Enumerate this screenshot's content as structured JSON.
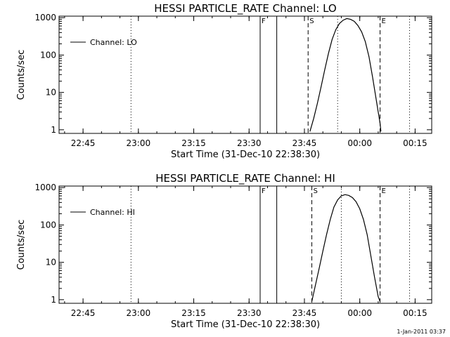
{
  "footer": {
    "stamp": "1-Jan-2011 03:37"
  },
  "chart_data": [
    {
      "type": "line",
      "title": "HESSI PARTICLE_RATE Channel: LO",
      "xlabel": "Start Time (31-Dec-10 22:38:30)",
      "ylabel": "Counts/sec",
      "x_unit": "hh:mm",
      "xlim": [
        "22:38:30",
        "00:19:30"
      ],
      "ylim": [
        0.8,
        1100
      ],
      "yscale": "log",
      "x_tick_labels": [
        "22:45",
        "23:00",
        "23:15",
        "23:30",
        "23:45",
        "00:00",
        "00:15"
      ],
      "y_tick_labels": [
        "1",
        "10",
        "100",
        "1000"
      ],
      "legend": {
        "position": "top-left",
        "entries": [
          "Channel: LO"
        ]
      },
      "series": [
        {
          "name": "Channel: LO",
          "x": [
            "23:46:30",
            "23:47:30",
            "23:48:30",
            "23:49:30",
            "23:50:30",
            "23:51:30",
            "23:52:30",
            "23:53:30",
            "23:54:30",
            "23:55:30",
            "23:56:30",
            "23:57:30",
            "23:58:30",
            "23:59:30",
            "00:00:30",
            "00:01:30",
            "00:02:30",
            "00:03:30",
            "00:04:30",
            "00:05:30",
            "00:05:45"
          ],
          "y": [
            0.9,
            2,
            5,
            14,
            40,
            110,
            260,
            480,
            700,
            860,
            950,
            900,
            800,
            620,
            420,
            230,
            90,
            25,
            6,
            1.5,
            0.9
          ]
        }
      ],
      "markers": [
        {
          "label": "F",
          "time": "23:33:00",
          "style": "solid"
        },
        {
          "label": "",
          "time": "23:37:30",
          "style": "solid"
        },
        {
          "label": "S",
          "time": "23:46:00",
          "style": "dashed"
        },
        {
          "label": "E",
          "time": "00:05:30",
          "style": "dashed"
        },
        {
          "label": "",
          "time": "22:58:00",
          "style": "dotted"
        },
        {
          "label": "",
          "time": "23:54:00",
          "style": "dotted"
        },
        {
          "label": "",
          "time": "00:13:30",
          "style": "dotted"
        }
      ]
    },
    {
      "type": "line",
      "title": "HESSI PARTICLE_RATE Channel: HI",
      "xlabel": "Start Time (31-Dec-10 22:38:30)",
      "ylabel": "Counts/sec",
      "x_unit": "hh:mm",
      "xlim": [
        "22:38:30",
        "00:19:30"
      ],
      "ylim": [
        0.8,
        1100
      ],
      "yscale": "log",
      "x_tick_labels": [
        "22:45",
        "23:00",
        "23:15",
        "23:30",
        "23:45",
        "00:00",
        "00:15"
      ],
      "y_tick_labels": [
        "1",
        "10",
        "100",
        "1000"
      ],
      "legend": {
        "position": "top-left",
        "entries": [
          "Channel: HI"
        ]
      },
      "series": [
        {
          "name": "Channel: HI",
          "x": [
            "23:47:00",
            "23:48:00",
            "23:49:00",
            "23:50:00",
            "23:51:00",
            "23:52:00",
            "23:53:00",
            "23:54:00",
            "23:55:00",
            "23:56:00",
            "23:57:00",
            "23:58:00",
            "23:59:00",
            "00:00:00",
            "00:01:00",
            "00:02:00",
            "00:03:00",
            "00:04:00",
            "00:05:00",
            "00:05:30"
          ],
          "y": [
            0.9,
            2.5,
            7,
            20,
            55,
            140,
            300,
            470,
            600,
            650,
            620,
            540,
            420,
            270,
            140,
            55,
            15,
            4,
            1.2,
            0.9
          ]
        }
      ],
      "markers": [
        {
          "label": "F",
          "time": "23:33:00",
          "style": "solid"
        },
        {
          "label": "",
          "time": "23:37:30",
          "style": "solid"
        },
        {
          "label": "S",
          "time": "23:47:00",
          "style": "dashed"
        },
        {
          "label": "E",
          "time": "00:05:30",
          "style": "dashed"
        },
        {
          "label": "",
          "time": "22:58:00",
          "style": "dotted"
        },
        {
          "label": "",
          "time": "23:55:00",
          "style": "dotted"
        },
        {
          "label": "",
          "time": "00:13:30",
          "style": "dotted"
        }
      ]
    }
  ]
}
